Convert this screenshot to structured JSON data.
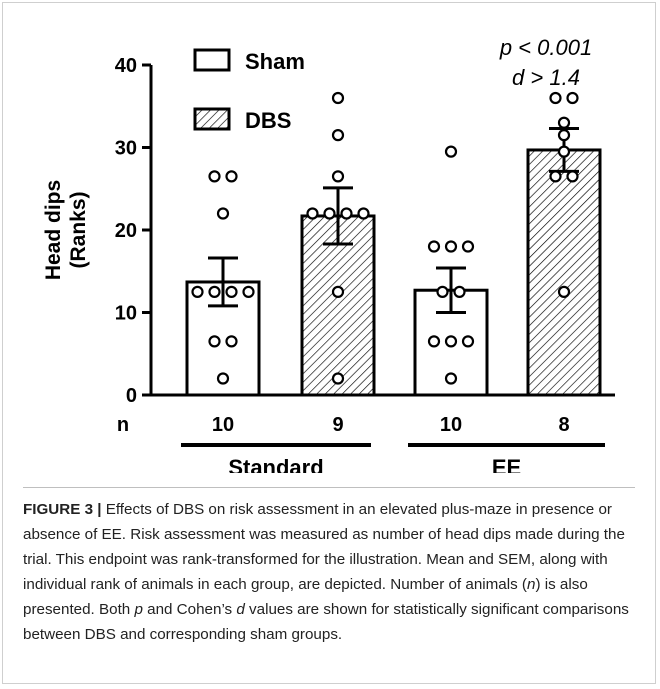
{
  "chart_data": {
    "type": "bar",
    "ylabel": "Head dips",
    "ylabel_sub": "(Ranks)",
    "ylim": [
      0,
      40
    ],
    "yticks": [
      0,
      10,
      20,
      30,
      40
    ],
    "n_label": "n",
    "legend": [
      {
        "name": "Sham",
        "pattern": "open"
      },
      {
        "name": "DBS",
        "pattern": "hatched"
      }
    ],
    "groups": [
      {
        "name": "Standard",
        "bars": [
          0,
          1
        ]
      },
      {
        "name": "EE",
        "bars": [
          2,
          3
        ]
      }
    ],
    "bars": [
      {
        "group": "Standard",
        "series": "Sham",
        "n": "10",
        "mean": 13.7,
        "sem": 2.9,
        "points": [
          26.5,
          26.5,
          22,
          12.5,
          12.5,
          12.5,
          12.5,
          6.5,
          6.5,
          2
        ]
      },
      {
        "group": "Standard",
        "series": "DBS",
        "n": "9",
        "mean": 21.7,
        "sem": 3.4,
        "points": [
          36,
          31.5,
          26.5,
          22,
          22,
          22,
          22,
          12.5,
          2
        ]
      },
      {
        "group": "EE",
        "series": "Sham",
        "n": "10",
        "mean": 12.7,
        "sem": 2.7,
        "points": [
          29.5,
          18,
          18,
          18,
          12.5,
          12.5,
          6.5,
          6.5,
          6.5,
          2
        ]
      },
      {
        "group": "EE",
        "series": "DBS",
        "n": "8",
        "mean": 29.7,
        "sem": 2.6,
        "points": [
          36,
          36,
          33,
          31.5,
          29.5,
          26.5,
          26.5,
          12.5
        ]
      }
    ],
    "annotation": {
      "line1": "p < 0.001",
      "line2": "d > 1.4"
    }
  },
  "caption": {
    "lead": "FIGURE 3 |",
    "part1": " Effects of DBS on risk assessment in an elevated plus-maze in presence or absence of EE. Risk assessment was measured as number of head dips made during the trial. This endpoint was rank-transformed for the illustration. Mean and SEM, along with individual rank of animals in each group, are depicted. Number of animals (",
    "n_italic": "n",
    "part2": ") is also presented. Both ",
    "p_italic": "p",
    "part3": " and Cohen’s ",
    "d_italic": "d",
    "part4": " values are shown for statistically significant comparisons between DBS and corresponding sham groups."
  },
  "colors": {
    "bar_stroke": "#000000",
    "hatch": "#000000",
    "caption_text": "#222222"
  }
}
